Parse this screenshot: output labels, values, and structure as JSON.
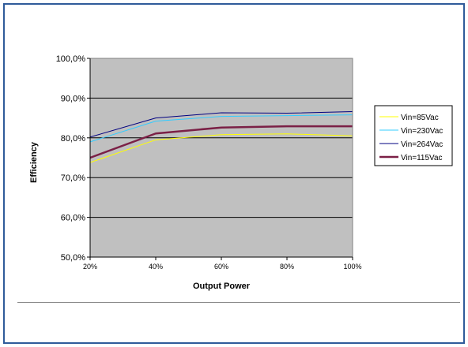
{
  "chart_data": {
    "type": "line",
    "title": "",
    "xlabel": "Output Power",
    "ylabel": "Efficiency",
    "x": [
      "20%",
      "40%",
      "60%",
      "80%",
      "100%"
    ],
    "yticks": [
      "50,0%",
      "60,0%",
      "70,0%",
      "80,0%",
      "90,0%",
      "100,0%"
    ],
    "ylim": [
      50,
      100
    ],
    "grid": true,
    "legend_position": "right",
    "plot_background": "#c0c0c0",
    "series": [
      {
        "name": "Vin=85Vac",
        "color": "#ffff00",
        "width": 1,
        "values": [
          73.8,
          79.5,
          80.8,
          81.0,
          80.5
        ]
      },
      {
        "name": "Vin=230Vac",
        "color": "#33ccff",
        "width": 1,
        "values": [
          79.0,
          84.2,
          85.4,
          85.6,
          85.8
        ]
      },
      {
        "name": "Vin=264Vac",
        "color": "#000080",
        "width": 1,
        "values": [
          80.2,
          85.0,
          86.3,
          86.2,
          86.6
        ]
      },
      {
        "name": "Vin=115Vac",
        "color": "#7b2046",
        "width": 2.5,
        "values": [
          75.0,
          81.1,
          82.6,
          82.9,
          82.9
        ]
      }
    ]
  }
}
